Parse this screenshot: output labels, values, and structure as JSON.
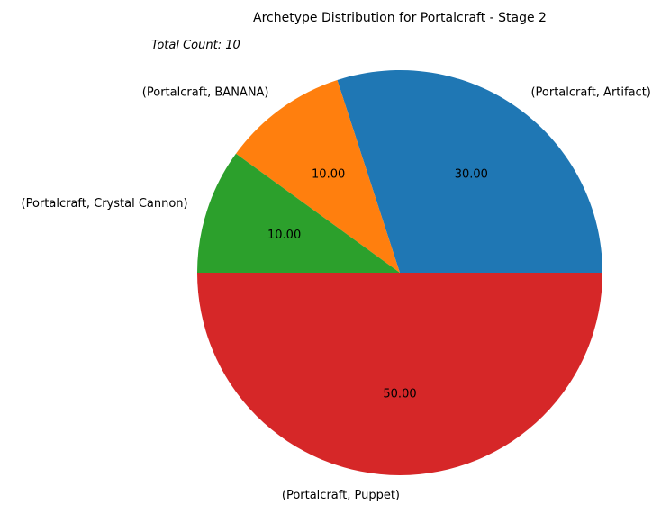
{
  "chart_data": {
    "type": "pie",
    "title": "Archetype Distribution for Portalcraft - Stage 2",
    "annotation": "Total Count: 10",
    "start_angle_deg": 0,
    "direction": "counterclockwise",
    "slices": [
      {
        "label": "(Portalcraft, Artifact)",
        "value": 30.0,
        "display": "30.00",
        "color": "#1f77b4"
      },
      {
        "label": "(Portalcraft, BANANA)",
        "value": 10.0,
        "display": "10.00",
        "color": "#ff7f0e"
      },
      {
        "label": "(Portalcraft, Crystal Cannon)",
        "value": 10.0,
        "display": "10.00",
        "color": "#2ca02c"
      },
      {
        "label": "(Portalcraft, Puppet)",
        "value": 50.0,
        "display": "50.00",
        "color": "#d62728"
      }
    ]
  }
}
